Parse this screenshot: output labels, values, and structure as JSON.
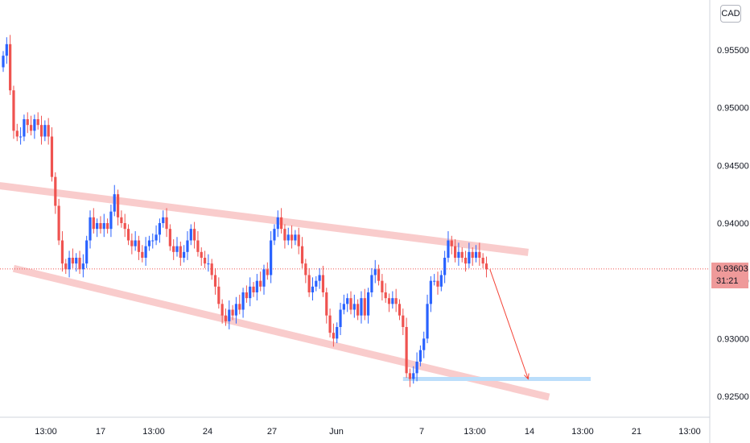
{
  "header": {
    "currency": "CAD"
  },
  "last_price": {
    "value": "0.93603",
    "countdown": "31:21"
  },
  "colors": {
    "up": "#2962ff",
    "down": "#ef5350",
    "channel": "#f8bbbc",
    "projection": "#f44336",
    "target_zone": "#bbdefb",
    "price_line": "#ef5350"
  },
  "chart_data": {
    "type": "candlestick",
    "title": "",
    "xlabel": "",
    "ylabel": "",
    "ylim": [
      0.9225,
      0.959
    ],
    "y_ticks": [
      "0.95500",
      "0.95000",
      "0.94500",
      "0.94000",
      "0.93500",
      "0.93000",
      "0.92500"
    ],
    "x_tick_labels": [
      "13:00",
      "17",
      "13:00",
      "24",
      "27",
      "Jun",
      "7",
      "13:00",
      "14",
      "13:00",
      "21",
      "13:00"
    ],
    "last_close": 0.93603,
    "closes": [
      0.9545,
      0.9555,
      0.9515,
      0.948,
      0.9475,
      0.9475,
      0.949,
      0.9485,
      0.948,
      0.949,
      0.9485,
      0.9475,
      0.9485,
      0.9475,
      0.944,
      0.9415,
      0.9385,
      0.9365,
      0.936,
      0.937,
      0.9365,
      0.937,
      0.936,
      0.9365,
      0.9385,
      0.9405,
      0.9395,
      0.94,
      0.9395,
      0.94,
      0.9395,
      0.941,
      0.9425,
      0.9405,
      0.94,
      0.9395,
      0.9385,
      0.938,
      0.9385,
      0.9375,
      0.937,
      0.938,
      0.9385,
      0.9385,
      0.939,
      0.94,
      0.9405,
      0.9395,
      0.938,
      0.9375,
      0.938,
      0.937,
      0.9375,
      0.9385,
      0.9395,
      0.9385,
      0.9375,
      0.937,
      0.9365,
      0.9365,
      0.9355,
      0.9345,
      0.933,
      0.932,
      0.9315,
      0.9325,
      0.932,
      0.933,
      0.9325,
      0.934,
      0.9335,
      0.9345,
      0.934,
      0.935,
      0.9345,
      0.936,
      0.9355,
      0.9385,
      0.9395,
      0.9405,
      0.9395,
      0.9385,
      0.939,
      0.9385,
      0.939,
      0.938,
      0.9365,
      0.9355,
      0.934,
      0.9345,
      0.935,
      0.9355,
      0.934,
      0.932,
      0.9305,
      0.93,
      0.931,
      0.9325,
      0.933,
      0.9335,
      0.9325,
      0.933,
      0.932,
      0.9335,
      0.932,
      0.934,
      0.9355,
      0.936,
      0.935,
      0.934,
      0.9335,
      0.933,
      0.9335,
      0.933,
      0.932,
      0.931,
      0.927,
      0.9265,
      0.927,
      0.928,
      0.929,
      0.93,
      0.933,
      0.935,
      0.935,
      0.9345,
      0.9355,
      0.937,
      0.9385,
      0.938,
      0.937,
      0.9375,
      0.937,
      0.9365,
      0.9375,
      0.937,
      0.9375,
      0.937,
      0.9365,
      0.936
    ],
    "annotations": {
      "channel_upper": {
        "from": [
          0,
          0.9432
        ],
        "to": [
          150,
          0.9375
        ]
      },
      "channel_lower": {
        "from": [
          4,
          0.936
        ],
        "to": [
          156,
          0.925
        ]
      },
      "projection": {
        "from": [
          140,
          0.936
        ],
        "to": [
          151,
          0.9265
        ]
      },
      "target_level": {
        "from": [
          115,
          0.9265
        ],
        "to": [
          169,
          0.9265
        ]
      }
    }
  }
}
